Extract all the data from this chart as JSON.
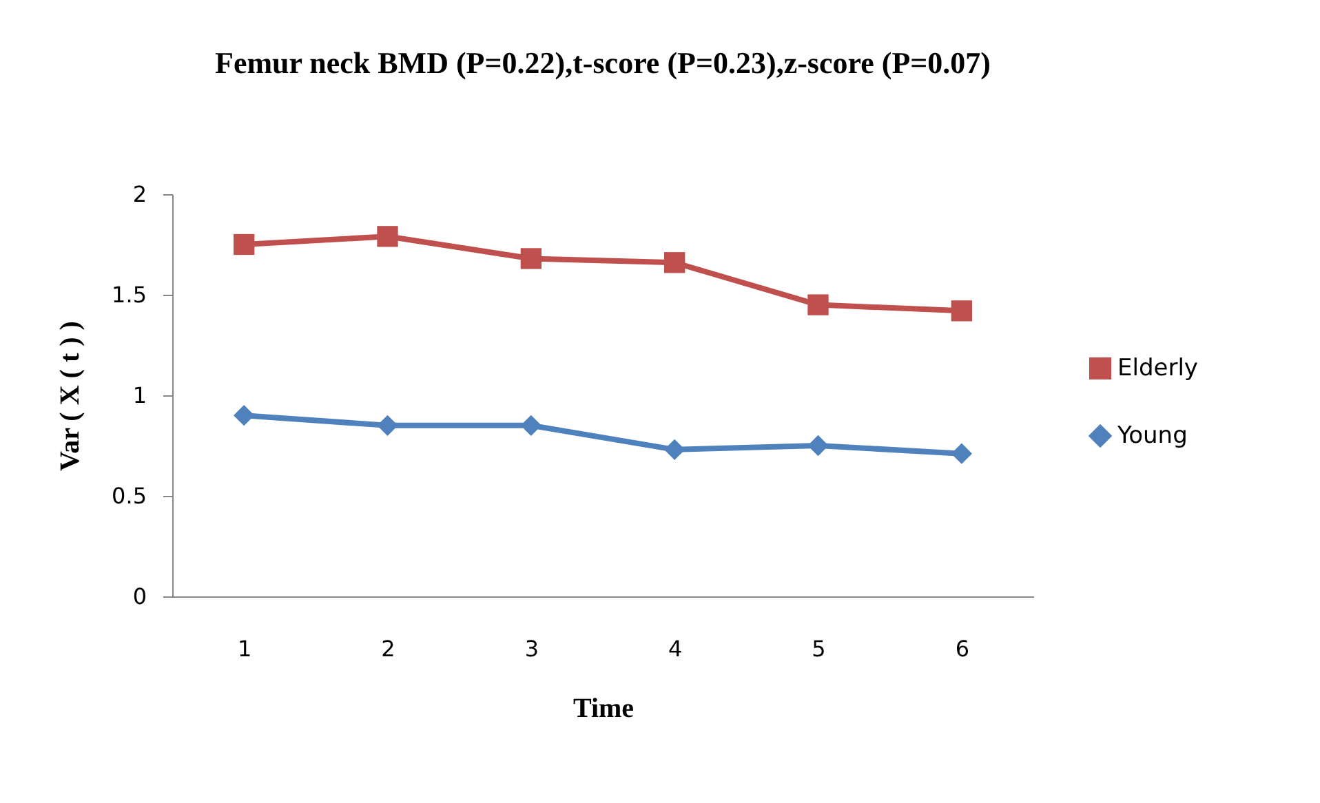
{
  "chart_data": {
    "type": "line",
    "title": "Femur neck BMD (P=0.22),t-score (P=0.23),z-score (P=0.07)",
    "xlabel": "Time",
    "ylabel": "Var ( X ( t ) )",
    "categories": [
      "1",
      "2",
      "3",
      "4",
      "5",
      "6"
    ],
    "series": [
      {
        "name": "Elderly",
        "color": "#c0504d",
        "marker": "square",
        "values": [
          1.75,
          1.79,
          1.68,
          1.66,
          1.45,
          1.42
        ]
      },
      {
        "name": "Young",
        "color": "#4f81bd",
        "marker": "diamond",
        "values": [
          0.9,
          0.85,
          0.85,
          0.73,
          0.75,
          0.71
        ]
      }
    ],
    "ylim": [
      0,
      2
    ],
    "yticks": [
      0,
      0.5,
      1,
      1.5,
      2
    ],
    "grid": false,
    "legend": "right"
  }
}
